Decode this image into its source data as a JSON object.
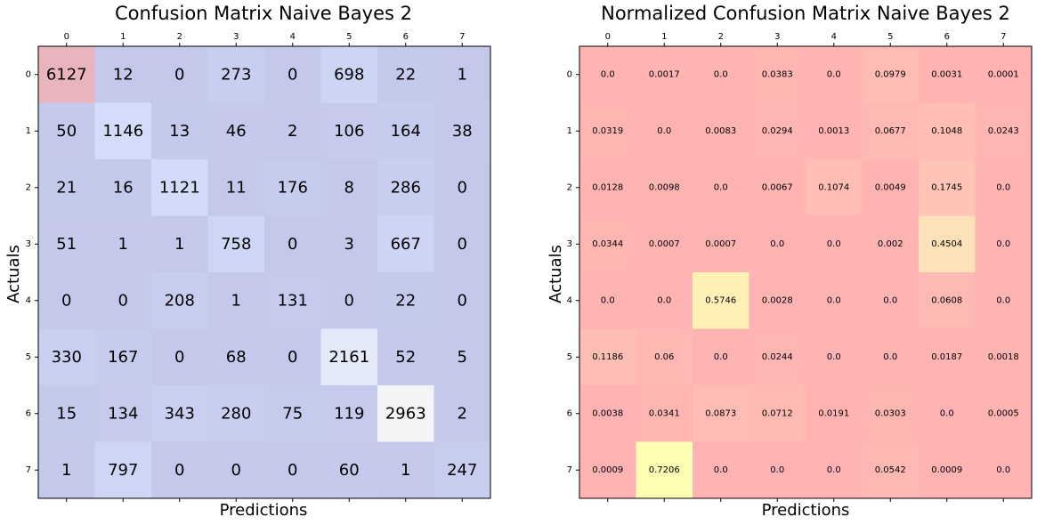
{
  "chart_data": [
    {
      "type": "heatmap",
      "title": "Confusion Matrix Naive Bayes 2",
      "xlabel": "Predictions",
      "ylabel": "Actuals",
      "x_ticks": [
        "0",
        "1",
        "2",
        "3",
        "4",
        "5",
        "6",
        "7"
      ],
      "y_ticks": [
        "0",
        "1",
        "2",
        "3",
        "4",
        "5",
        "6",
        "7"
      ],
      "colormap": "coolwarm",
      "alpha": 0.3,
      "values": [
        [
          6127,
          12,
          0,
          273,
          0,
          698,
          22,
          1
        ],
        [
          50,
          1146,
          13,
          46,
          2,
          106,
          164,
          38
        ],
        [
          21,
          16,
          1121,
          11,
          176,
          8,
          286,
          0
        ],
        [
          51,
          1,
          1,
          758,
          0,
          3,
          667,
          0
        ],
        [
          0,
          0,
          208,
          1,
          131,
          0,
          22,
          0
        ],
        [
          330,
          167,
          0,
          68,
          0,
          2161,
          52,
          5
        ],
        [
          15,
          134,
          343,
          280,
          75,
          119,
          2963,
          2
        ],
        [
          1,
          797,
          0,
          0,
          0,
          60,
          1,
          247
        ]
      ]
    },
    {
      "type": "heatmap",
      "title": "Normalized Confusion Matrix Naive Bayes 2",
      "xlabel": "Predictions",
      "ylabel": "Actuals",
      "x_ticks": [
        "0",
        "1",
        "2",
        "3",
        "4",
        "5",
        "6",
        "7"
      ],
      "y_ticks": [
        "0",
        "1",
        "2",
        "3",
        "4",
        "5",
        "6",
        "7"
      ],
      "colormap": "Wistia-like",
      "alpha": 0.3,
      "values": [
        [
          "0.0",
          "0.0017",
          "0.0",
          "0.0383",
          "0.0",
          "0.0979",
          "0.0031",
          "0.0001"
        ],
        [
          "0.0319",
          "0.0",
          "0.0083",
          "0.0294",
          "0.0013",
          "0.0677",
          "0.1048",
          "0.0243"
        ],
        [
          "0.0128",
          "0.0098",
          "0.0",
          "0.0067",
          "0.1074",
          "0.0049",
          "0.1745",
          "0.0"
        ],
        [
          "0.0344",
          "0.0007",
          "0.0007",
          "0.0",
          "0.0",
          "0.002",
          "0.4504",
          "0.0"
        ],
        [
          "0.0",
          "0.0",
          "0.5746",
          "0.0028",
          "0.0",
          "0.0",
          "0.0608",
          "0.0"
        ],
        [
          "0.1186",
          "0.06",
          "0.0",
          "0.0244",
          "0.0",
          "0.0",
          "0.0187",
          "0.0018"
        ],
        [
          "0.0038",
          "0.0341",
          "0.0873",
          "0.0712",
          "0.0191",
          "0.0303",
          "0.0",
          "0.0005"
        ],
        [
          "0.0009",
          "0.7206",
          "0.0",
          "0.0",
          "0.0",
          "0.0542",
          "0.0009",
          "0.0"
        ]
      ]
    }
  ]
}
